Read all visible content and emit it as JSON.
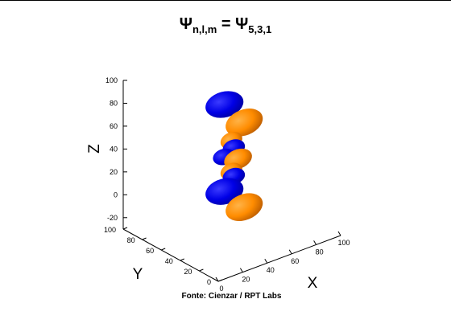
{
  "title": {
    "main": "Ψ",
    "sub_nlm": "n,l,m",
    "eq": " = ",
    "main2": "Ψ",
    "sub_vals": "5,3,1"
  },
  "source": "Fonte: Cienzar / RPT Labs",
  "chart_data": {
    "type": "isosurface-3d",
    "title": "Ψn,l,m = Ψ5,3,1",
    "quantum_numbers": {
      "n": 5,
      "l": 3,
      "m": 1
    },
    "xlabel": "X",
    "ylabel": "Y",
    "zlabel": "Z",
    "xlim": [
      0,
      100
    ],
    "ylim": [
      0,
      100
    ],
    "zlim": [
      -30,
      100
    ],
    "x_ticks": [
      0,
      20,
      40,
      60,
      80,
      100
    ],
    "y_ticks": [
      0,
      20,
      40,
      60,
      80,
      100
    ],
    "z_ticks": [
      -20,
      0,
      20,
      40,
      60,
      80,
      100
    ],
    "grid": false,
    "legend": "none",
    "colors": {
      "positive_lobe": "#ff8c00",
      "negative_lobe": "#0000ee"
    },
    "lobes": [
      {
        "phase": "negative",
        "x": 40,
        "y": 45,
        "z": 88
      },
      {
        "phase": "positive",
        "x": 60,
        "y": 50,
        "z": 62
      },
      {
        "phase": "positive",
        "x": 48,
        "y": 48,
        "z": 52
      },
      {
        "phase": "negative",
        "x": 50,
        "y": 48,
        "z": 45
      },
      {
        "phase": "negative",
        "x": 42,
        "y": 48,
        "z": 40
      },
      {
        "phase": "positive",
        "x": 55,
        "y": 50,
        "z": 32
      },
      {
        "phase": "positive",
        "x": 48,
        "y": 48,
        "z": 25
      },
      {
        "phase": "negative",
        "x": 50,
        "y": 48,
        "z": 20
      },
      {
        "phase": "negative",
        "x": 40,
        "y": 45,
        "z": 12
      },
      {
        "phase": "positive",
        "x": 60,
        "y": 50,
        "z": -12
      }
    ]
  }
}
